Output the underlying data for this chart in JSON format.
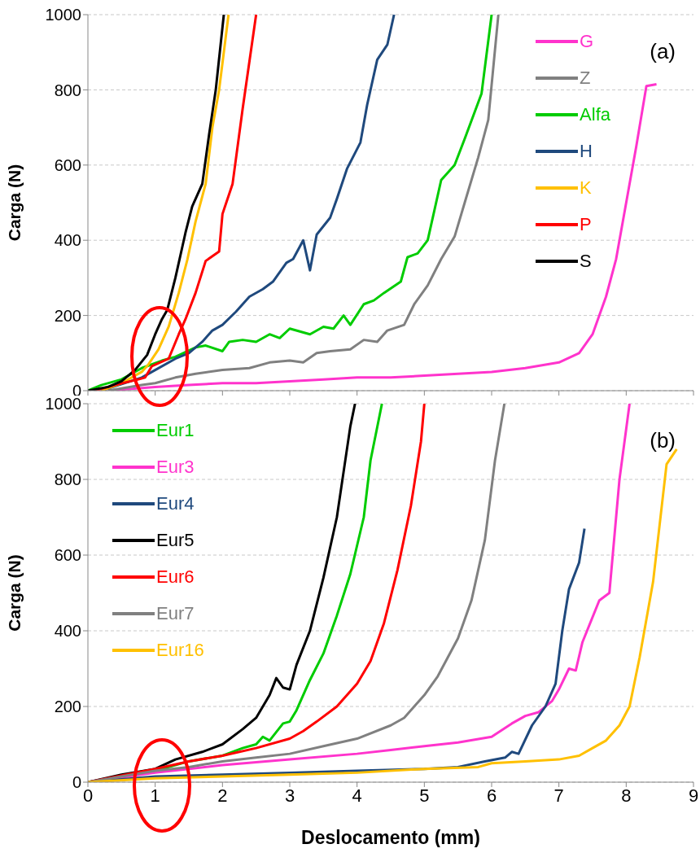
{
  "chart_data": [
    {
      "type": "line",
      "ylabel": "Carga (N)",
      "xlim": [
        0,
        9
      ],
      "xticks": [
        0,
        1,
        2,
        3,
        4,
        5,
        6,
        7,
        8,
        9
      ],
      "ylim": [
        0,
        1000
      ],
      "yticks": [
        0,
        200,
        400,
        600,
        800,
        1000
      ],
      "tick_labels": "y",
      "grid": "y",
      "legend": "top right",
      "annotations": [
        "(a)"
      ],
      "series": [
        {
          "name": "G",
          "color": "#ff33cc",
          "x": [
            0.3,
            1.0,
            1.5,
            2.0,
            2.5,
            3.0,
            3.5,
            4.0,
            4.5,
            5.0,
            5.5,
            6.0,
            6.5,
            7.0,
            7.3,
            7.5,
            7.7,
            7.85,
            8.0,
            8.15,
            8.3,
            8.45
          ],
          "values": [
            0,
            10,
            15,
            20,
            20,
            25,
            30,
            35,
            35,
            40,
            45,
            50,
            60,
            75,
            100,
            150,
            250,
            350,
            500,
            650,
            810,
            815
          ]
        },
        {
          "name": "Z",
          "color": "#808080",
          "x": [
            0.3,
            0.8,
            1.0,
            1.3,
            1.6,
            2.0,
            2.4,
            2.7,
            3.0,
            3.2,
            3.4,
            3.6,
            3.9,
            4.1,
            4.3,
            4.45,
            4.7,
            4.85,
            5.05,
            5.25,
            5.45,
            5.6,
            5.8,
            5.95,
            6.1
          ],
          "values": [
            0,
            15,
            20,
            35,
            45,
            55,
            60,
            75,
            80,
            75,
            100,
            105,
            110,
            135,
            130,
            160,
            175,
            230,
            280,
            350,
            410,
            500,
            620,
            720,
            1000
          ]
        },
        {
          "name": "Alfa",
          "color": "#00cc00",
          "x": [
            0,
            0.2,
            0.5,
            0.8,
            1.1,
            1.3,
            1.6,
            1.75,
            2.0,
            2.1,
            2.3,
            2.5,
            2.7,
            2.85,
            3.0,
            3.3,
            3.5,
            3.65,
            3.8,
            3.9,
            4.1,
            4.25,
            4.4,
            4.65,
            4.75,
            4.9,
            5.05,
            5.25,
            5.45,
            5.6,
            5.85,
            6.0
          ],
          "values": [
            0,
            15,
            30,
            60,
            80,
            90,
            115,
            120,
            105,
            130,
            135,
            130,
            150,
            140,
            165,
            150,
            170,
            165,
            200,
            175,
            230,
            240,
            260,
            290,
            355,
            365,
            400,
            560,
            600,
            670,
            790,
            1000
          ]
        },
        {
          "name": "H",
          "color": "#1f497d",
          "x": [
            0.2,
            0.8,
            1.0,
            1.3,
            1.5,
            1.7,
            1.85,
            2.0,
            2.2,
            2.4,
            2.6,
            2.75,
            2.95,
            3.05,
            3.2,
            3.3,
            3.4,
            3.6,
            3.7,
            3.85,
            4.05,
            4.15,
            4.3,
            4.45,
            4.55
          ],
          "values": [
            0,
            35,
            55,
            85,
            100,
            130,
            160,
            175,
            210,
            250,
            270,
            290,
            340,
            350,
            400,
            320,
            415,
            460,
            510,
            590,
            660,
            760,
            880,
            920,
            1000
          ]
        },
        {
          "name": "K",
          "color": "#ffc000",
          "x": [
            0.2,
            0.5,
            0.8,
            0.9,
            1.05,
            1.2,
            1.35,
            1.48,
            1.6,
            1.75,
            1.85,
            1.95,
            2.09
          ],
          "values": [
            0,
            20,
            50,
            70,
            110,
            170,
            260,
            350,
            450,
            550,
            700,
            800,
            1000
          ]
        },
        {
          "name": "P",
          "color": "#ff0000",
          "x": [
            0.1,
            0.4,
            0.75,
            0.85,
            0.95,
            1.2,
            1.35,
            1.45,
            1.6,
            1.75,
            1.95,
            2.0,
            2.15,
            2.3,
            2.5
          ],
          "values": [
            0,
            15,
            30,
            35,
            65,
            85,
            150,
            190,
            260,
            345,
            370,
            470,
            550,
            750,
            1000
          ]
        },
        {
          "name": "S",
          "color": "#000000",
          "x": [
            0,
            0.3,
            0.5,
            0.7,
            0.88,
            1.0,
            1.1,
            1.18,
            1.3,
            1.45,
            1.55,
            1.7,
            1.8,
            1.9,
            2.02
          ],
          "values": [
            0,
            10,
            25,
            55,
            95,
            150,
            190,
            215,
            300,
            420,
            490,
            550,
            680,
            800,
            1000
          ]
        }
      ]
    },
    {
      "type": "line",
      "ylabel": "Carga (N)",
      "xlabel": "Deslocamento (mm)",
      "xlim": [
        0,
        9
      ],
      "xticks": [
        0,
        1,
        2,
        3,
        4,
        5,
        6,
        7,
        8,
        9
      ],
      "ylim": [
        0,
        1000
      ],
      "yticks": [
        0,
        200,
        400,
        600,
        800,
        1000
      ],
      "grid": "y",
      "legend": "top left",
      "annotations": [
        "(b)"
      ],
      "series": [
        {
          "name": "Eur1",
          "color": "#00cc00",
          "x": [
            0,
            1.0,
            1.5,
            2.0,
            2.3,
            2.5,
            2.6,
            2.7,
            2.9,
            3.0,
            3.1,
            3.3,
            3.5,
            3.7,
            3.9,
            4.1,
            4.2,
            4.37
          ],
          "values": [
            0,
            30,
            55,
            70,
            90,
            100,
            120,
            110,
            155,
            160,
            190,
            270,
            340,
            440,
            550,
            700,
            850,
            1000
          ]
        },
        {
          "name": "Eur3",
          "color": "#ff33cc",
          "x": [
            0,
            1.0,
            1.5,
            2.0,
            3.0,
            4.0,
            4.5,
            5.0,
            5.5,
            6.0,
            6.3,
            6.5,
            6.7,
            6.9,
            7.0,
            7.15,
            7.25,
            7.35,
            7.6,
            7.75,
            7.9,
            8.05
          ],
          "values": [
            0,
            25,
            35,
            45,
            60,
            75,
            85,
            95,
            105,
            120,
            155,
            175,
            185,
            215,
            245,
            300,
            295,
            370,
            480,
            500,
            800,
            1000
          ]
        },
        {
          "name": "Eur4",
          "color": "#1f497d",
          "x": [
            0,
            1.0,
            2.0,
            3.0,
            4.0,
            5.0,
            5.5,
            5.9,
            6.2,
            6.3,
            6.4,
            6.6,
            6.8,
            6.95,
            7.05,
            7.15,
            7.3,
            7.38
          ],
          "values": [
            0,
            15,
            20,
            25,
            30,
            35,
            40,
            55,
            65,
            80,
            75,
            150,
            200,
            260,
            400,
            510,
            580,
            670
          ]
        },
        {
          "name": "Eur5",
          "color": "#000000",
          "x": [
            0,
            0.5,
            1.0,
            1.3,
            1.7,
            2.0,
            2.3,
            2.5,
            2.7,
            2.8,
            2.9,
            3.0,
            3.1,
            3.3,
            3.5,
            3.7,
            3.9,
            3.97
          ],
          "values": [
            0,
            20,
            35,
            60,
            80,
            100,
            140,
            170,
            230,
            275,
            250,
            245,
            310,
            400,
            540,
            700,
            940,
            1000
          ]
        },
        {
          "name": "Eur6",
          "color": "#ff0000",
          "x": [
            0,
            1.0,
            1.5,
            2.0,
            2.5,
            3.0,
            3.2,
            3.4,
            3.7,
            4.0,
            4.2,
            4.4,
            4.6,
            4.8,
            4.95,
            5.0
          ],
          "values": [
            0,
            35,
            55,
            70,
            90,
            115,
            135,
            160,
            200,
            260,
            320,
            420,
            560,
            730,
            900,
            1000
          ]
        },
        {
          "name": "Eur7",
          "color": "#808080",
          "x": [
            0,
            1.0,
            1.5,
            2.0,
            2.5,
            3.0,
            3.5,
            4.0,
            4.5,
            4.7,
            5.0,
            5.2,
            5.5,
            5.7,
            5.9,
            6.05,
            6.19
          ],
          "values": [
            0,
            30,
            40,
            55,
            65,
            75,
            95,
            115,
            150,
            170,
            230,
            280,
            380,
            480,
            640,
            850,
            1000
          ]
        },
        {
          "name": "Eur16",
          "color": "#ffc000",
          "x": [
            0,
            1.0,
            2.0,
            3.0,
            4.0,
            5.0,
            5.8,
            6.0,
            6.5,
            7.0,
            7.3,
            7.5,
            7.7,
            7.9,
            8.05,
            8.2,
            8.4,
            8.6,
            8.75
          ],
          "values": [
            0,
            10,
            15,
            20,
            25,
            35,
            40,
            50,
            55,
            60,
            70,
            90,
            110,
            150,
            200,
            330,
            530,
            840,
            880
          ]
        }
      ]
    }
  ]
}
